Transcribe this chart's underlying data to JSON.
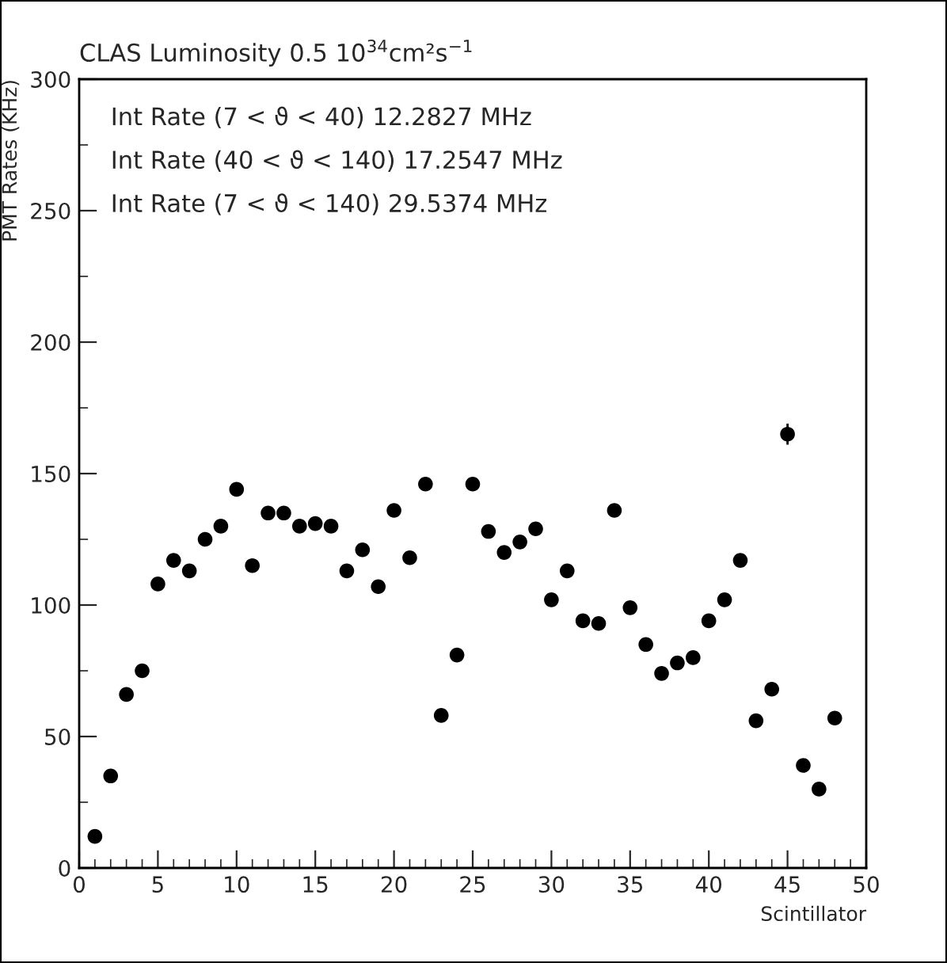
{
  "chart_data": {
    "type": "scatter",
    "title": "CLAS Luminosity 0.5 10$^{34}$cm²s$^{−1}$",
    "xlabel": "Scintillator",
    "ylabel": "PMT Rates (KHz)",
    "annotations": [
      "Int Rate (7 < ϑ < 40) 12.2827 MHz",
      "Int Rate (40 < ϑ < 140) 17.2547 MHz",
      "Int Rate (7 < ϑ < 140) 29.5374 MHz"
    ],
    "x": [
      1,
      2,
      3,
      4,
      5,
      6,
      7,
      8,
      9,
      10,
      11,
      12,
      13,
      14,
      15,
      16,
      17,
      18,
      19,
      20,
      21,
      22,
      23,
      24,
      25,
      26,
      27,
      28,
      29,
      30,
      31,
      32,
      33,
      34,
      35,
      36,
      37,
      38,
      39,
      40,
      41,
      42,
      43,
      44,
      45,
      46,
      47,
      48
    ],
    "series": [
      {
        "color": "#000000",
        "values": [
          12,
          35,
          66,
          75,
          108,
          117,
          113,
          125,
          130,
          144,
          115,
          135,
          135,
          130,
          131,
          130,
          113,
          121,
          107,
          136,
          118,
          146,
          58,
          81,
          146,
          128,
          120,
          124,
          129,
          102,
          113,
          94,
          93,
          136,
          99,
          85,
          74,
          78,
          80,
          94,
          102,
          117,
          56,
          68,
          165,
          39,
          30,
          57
        ],
        "errors": [
          null,
          null,
          null,
          null,
          null,
          null,
          null,
          null,
          null,
          null,
          null,
          null,
          null,
          null,
          null,
          null,
          null,
          null,
          null,
          null,
          null,
          null,
          null,
          null,
          null,
          null,
          null,
          null,
          null,
          null,
          null,
          null,
          null,
          null,
          null,
          null,
          null,
          null,
          null,
          null,
          null,
          null,
          null,
          null,
          4,
          null,
          null,
          null
        ]
      }
    ],
    "xlim": [
      0,
      50
    ],
    "xticks": [
      0,
      5,
      10,
      15,
      20,
      25,
      30,
      35,
      40,
      45,
      50
    ],
    "ylim": [
      0,
      300
    ],
    "yticks": [
      0,
      50,
      100,
      150,
      200,
      250,
      300
    ],
    "grid": false,
    "legend": false,
    "marker": "circle"
  }
}
